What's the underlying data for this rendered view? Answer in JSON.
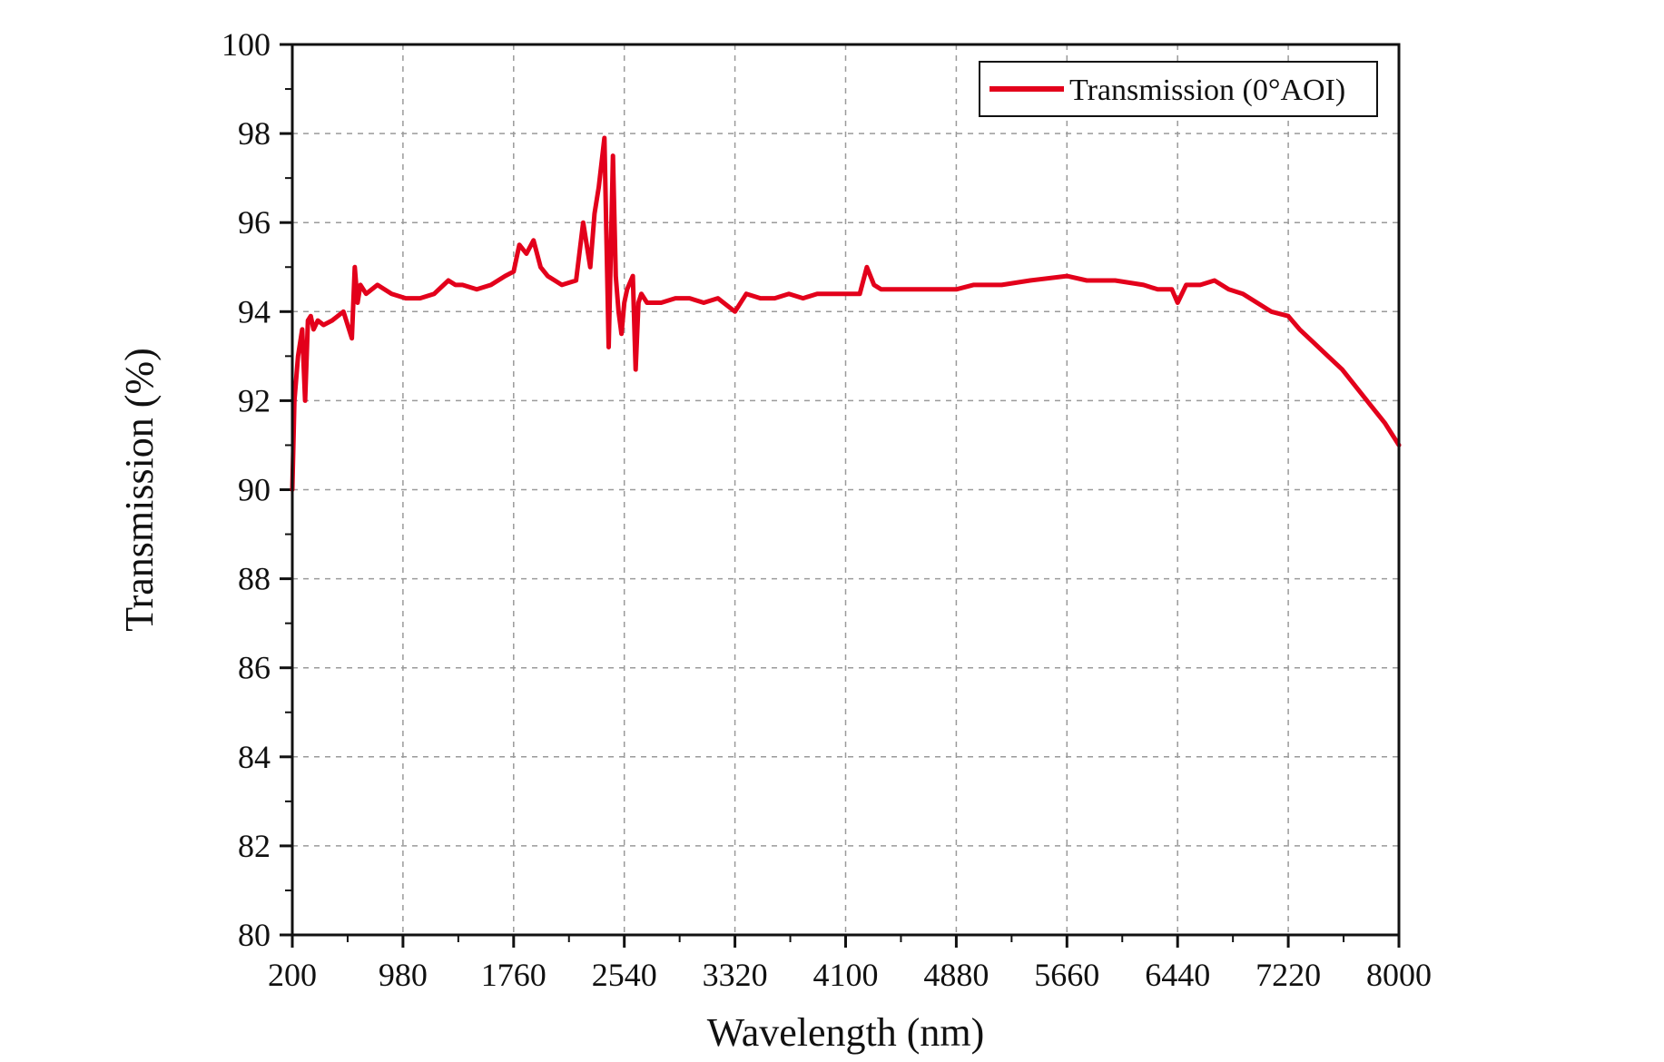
{
  "chart_data": {
    "type": "line",
    "title": "",
    "xlabel": "Wavelength (nm)",
    "ylabel": "Transmission (%)",
    "xlim": [
      200,
      8000
    ],
    "ylim": [
      80,
      100
    ],
    "x_ticks": [
      200,
      980,
      1760,
      2540,
      3320,
      4100,
      4880,
      5660,
      6440,
      7220,
      8000
    ],
    "y_ticks": [
      80,
      82,
      84,
      86,
      88,
      90,
      92,
      94,
      96,
      98,
      100
    ],
    "grid": true,
    "legend_position": "top-right",
    "series": [
      {
        "name": "Transmission (0°AOI)",
        "color": "#e3001b",
        "x": [
          200,
          215,
          240,
          270,
          290,
          310,
          330,
          350,
          380,
          420,
          480,
          560,
          620,
          640,
          660,
          680,
          720,
          800,
          900,
          1000,
          1100,
          1200,
          1300,
          1350,
          1400,
          1500,
          1600,
          1700,
          1760,
          1800,
          1850,
          1900,
          1950,
          2000,
          2100,
          2200,
          2250,
          2300,
          2330,
          2360,
          2400,
          2430,
          2460,
          2480,
          2500,
          2520,
          2540,
          2560,
          2600,
          2620,
          2640,
          2660,
          2700,
          2800,
          2900,
          3000,
          3100,
          3200,
          3320,
          3400,
          3500,
          3600,
          3700,
          3800,
          3900,
          4000,
          4100,
          4200,
          4250,
          4300,
          4350,
          4400,
          4500,
          4700,
          4880,
          5000,
          5200,
          5400,
          5660,
          5800,
          6000,
          6200,
          6300,
          6400,
          6440,
          6500,
          6600,
          6700,
          6800,
          6900,
          7000,
          7100,
          7220,
          7300,
          7400,
          7500,
          7600,
          7700,
          7800,
          7900,
          8000
        ],
        "y": [
          90.0,
          92.0,
          93.0,
          93.6,
          92.0,
          93.8,
          93.9,
          93.6,
          93.8,
          93.7,
          93.8,
          94.0,
          93.4,
          95.0,
          94.2,
          94.6,
          94.4,
          94.6,
          94.4,
          94.3,
          94.3,
          94.4,
          94.7,
          94.6,
          94.6,
          94.5,
          94.6,
          94.8,
          94.9,
          95.5,
          95.3,
          95.6,
          95.0,
          94.8,
          94.6,
          94.7,
          96.0,
          95.0,
          96.2,
          96.8,
          97.9,
          93.2,
          97.5,
          94.8,
          94.0,
          93.5,
          94.2,
          94.5,
          94.8,
          92.7,
          94.2,
          94.4,
          94.2,
          94.2,
          94.3,
          94.3,
          94.2,
          94.3,
          94.0,
          94.4,
          94.3,
          94.3,
          94.4,
          94.3,
          94.4,
          94.4,
          94.4,
          94.4,
          95.0,
          94.6,
          94.5,
          94.5,
          94.5,
          94.5,
          94.5,
          94.6,
          94.6,
          94.7,
          94.8,
          94.7,
          94.7,
          94.6,
          94.5,
          94.5,
          94.2,
          94.6,
          94.6,
          94.7,
          94.5,
          94.4,
          94.2,
          94.0,
          93.9,
          93.6,
          93.3,
          93.0,
          92.7,
          92.3,
          91.9,
          91.5,
          91.0
        ]
      }
    ]
  }
}
